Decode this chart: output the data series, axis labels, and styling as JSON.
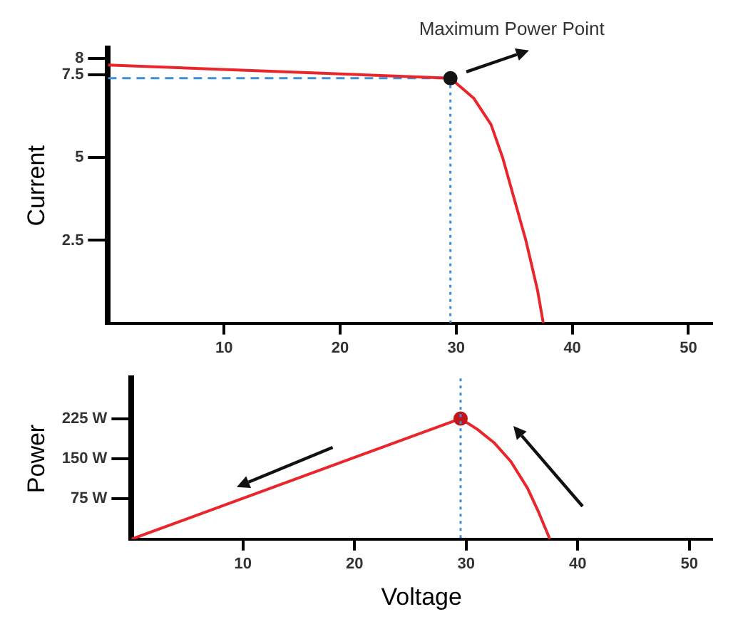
{
  "chart_data": [
    {
      "type": "line",
      "ylabel": "Current",
      "xlim": [
        0,
        52
      ],
      "ylim": [
        0,
        8.3
      ],
      "xticks": [
        10,
        20,
        30,
        40,
        50
      ],
      "yticks": [
        2.5,
        5,
        7.5,
        8
      ],
      "grid": false,
      "legend": false,
      "marker": "none",
      "series": [
        {
          "type": "scatter",
          "marker": "circle",
          "color": "#141414",
          "x": [
            29.5
          ],
          "values": [
            7.4
          ]
        },
        {
          "color": "#e8262b",
          "x": [
            0,
            29.5,
            31.5,
            33,
            34,
            35.2,
            36,
            37,
            37.5
          ],
          "values": [
            7.8,
            7.4,
            6.8,
            6,
            5,
            3.5,
            2.5,
            1,
            0
          ]
        },
        {
          "color": "#3f8fd6",
          "line_style": "dashed",
          "x": [
            0,
            29.5
          ],
          "values": [
            7.4,
            7.4
          ]
        },
        {
          "color": "#3f8fd6",
          "line_style": "dotted",
          "x": [
            29.5,
            29.5
          ],
          "values": [
            7.4,
            0
          ]
        }
      ],
      "annotations": [
        {
          "text": "Maximum Power Point",
          "x": 29.5,
          "y": 7.4
        }
      ]
    },
    {
      "type": "line",
      "xlabel": "Voltage",
      "ylabel": "Power",
      "xlim": [
        0,
        52
      ],
      "ylim": [
        0,
        300
      ],
      "xticks": [
        10,
        20,
        30,
        40,
        50
      ],
      "yticks": [
        {
          "value": 75,
          "label": "75 W"
        },
        {
          "value": 150,
          "label": "150 W"
        },
        {
          "value": 225,
          "label": "225 W"
        }
      ],
      "grid": false,
      "legend": false,
      "marker": "none",
      "series": [
        {
          "type": "scatter",
          "marker": "circle",
          "color": "#c0161b",
          "x": [
            29.5
          ],
          "values": [
            225
          ]
        },
        {
          "color": "#e8262b",
          "x": [
            0,
            29.5,
            31,
            32.5,
            34,
            35.5,
            36.5,
            37.5
          ],
          "values": [
            0,
            225,
            205,
            180,
            145,
            95,
            50,
            0
          ]
        }
      ],
      "ref_lines": [
        {
          "axis": "x",
          "value": 29.5,
          "color": "#3f8fd6",
          "line_style": "dotted"
        }
      ]
    }
  ]
}
